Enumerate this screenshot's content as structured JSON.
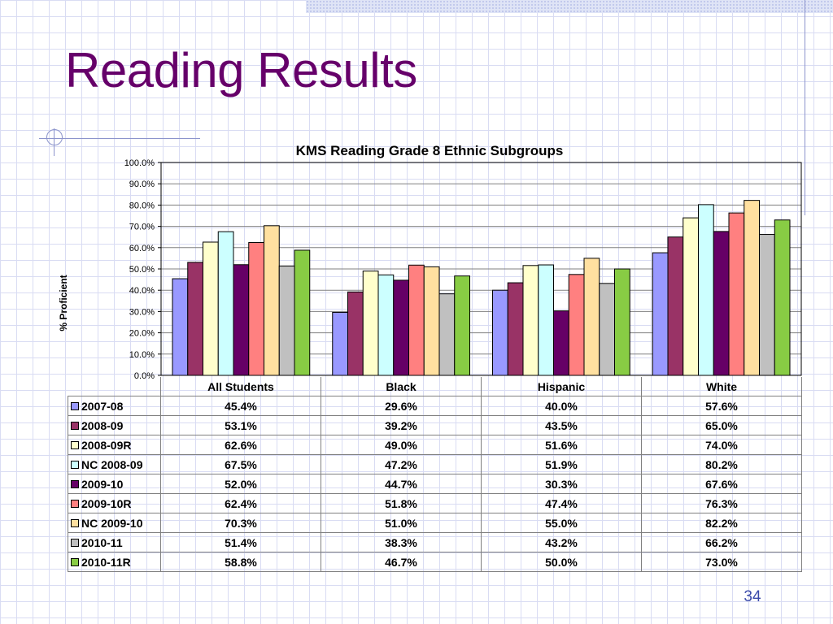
{
  "slide": {
    "title": "Reading Results",
    "page_number": "34"
  },
  "chart_data": {
    "type": "bar",
    "title": "KMS Reading Grade 8 Ethnic Subgroups",
    "ylabel": "% Proficient",
    "xlabel": "",
    "ylim": [
      0,
      100
    ],
    "yticks": [
      "0.0%",
      "10.0%",
      "20.0%",
      "30.0%",
      "40.0%",
      "50.0%",
      "60.0%",
      "70.0%",
      "80.0%",
      "90.0%",
      "100.0%"
    ],
    "grid": true,
    "legend": "table-below",
    "categories": [
      "All Students",
      "Black",
      "Hispanic",
      "White"
    ],
    "series": [
      {
        "name": "2007-08",
        "color": "#9999ff",
        "values": [
          45.4,
          29.6,
          40.0,
          57.6
        ],
        "labels": [
          "45.4%",
          "29.6%",
          "40.0%",
          "57.6%"
        ]
      },
      {
        "name": "2008-09",
        "color": "#993366",
        "values": [
          53.1,
          39.2,
          43.5,
          65.0
        ],
        "labels": [
          "53.1%",
          "39.2%",
          "43.5%",
          "65.0%"
        ]
      },
      {
        "name": "2008-09R",
        "color": "#ffffcc",
        "values": [
          62.6,
          49.0,
          51.6,
          74.0
        ],
        "labels": [
          "62.6%",
          "49.0%",
          "51.6%",
          "74.0%"
        ]
      },
      {
        "name": "NC 2008-09",
        "color": "#ccffff",
        "values": [
          67.5,
          47.2,
          51.9,
          80.2
        ],
        "labels": [
          "67.5%",
          "47.2%",
          "51.9%",
          "80.2%"
        ]
      },
      {
        "name": "2009-10",
        "color": "#660066",
        "values": [
          52.0,
          44.7,
          30.3,
          67.6
        ],
        "labels": [
          "52.0%",
          "44.7%",
          "30.3%",
          "67.6%"
        ]
      },
      {
        "name": "2009-10R",
        "color": "#ff8080",
        "values": [
          62.4,
          51.8,
          47.4,
          76.3
        ],
        "labels": [
          "62.4%",
          "51.8%",
          "47.4%",
          "76.3%"
        ]
      },
      {
        "name": "NC 2009-10",
        "color": "#ffe0a0",
        "values": [
          70.3,
          51.0,
          55.0,
          82.2
        ],
        "labels": [
          "70.3%",
          "51.0%",
          "55.0%",
          "82.2%"
        ]
      },
      {
        "name": "2010-11",
        "color": "#c0c0c0",
        "values": [
          51.4,
          38.3,
          43.2,
          66.2
        ],
        "labels": [
          "51.4%",
          "38.3%",
          "43.2%",
          "66.2%"
        ]
      },
      {
        "name": "2010-11R",
        "color": "#88cc44",
        "values": [
          58.8,
          46.7,
          50.0,
          73.0
        ],
        "labels": [
          "58.8%",
          "46.7%",
          "50.0%",
          "73.0%"
        ]
      }
    ]
  }
}
